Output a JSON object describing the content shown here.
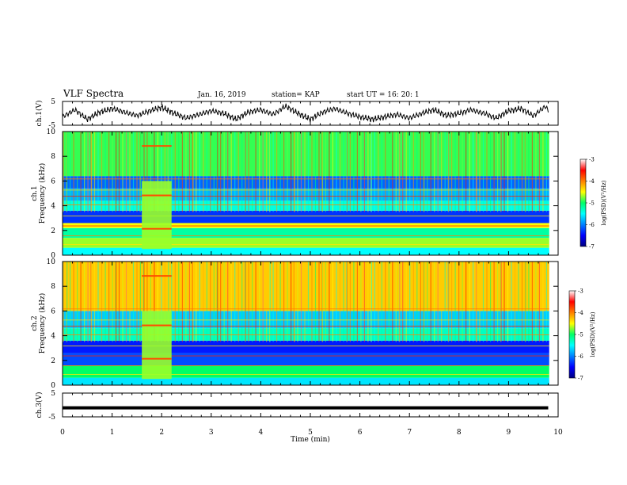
{
  "header": {
    "title": "VLF Spectra",
    "date": "Jan. 16, 2019",
    "station": "station= KAP",
    "start": "start  UT =   16: 20: 1"
  },
  "chart_data": [
    {
      "type": "line",
      "panel": "channel-1-waveform",
      "ylabel": "ch.1(V)",
      "ylim": [
        -5,
        5
      ],
      "yticks": [
        "5",
        "-5"
      ],
      "xlim": [
        0,
        10
      ],
      "series": [
        {
          "x": [
            0.0,
            0.25,
            0.5,
            0.75,
            1.0,
            1.25,
            1.5,
            1.75,
            2.0,
            2.25,
            2.5,
            2.75,
            3.0,
            3.25,
            3.5,
            3.75,
            4.0,
            4.25,
            4.5,
            4.75,
            5.0,
            5.25,
            5.5,
            5.75,
            6.0,
            6.25,
            6.5,
            6.75,
            7.0,
            7.25,
            7.5,
            7.75,
            8.0,
            8.25,
            8.5,
            8.75,
            9.0,
            9.25,
            9.5,
            9.75,
            9.8
          ],
          "values": [
            -1.5,
            1.5,
            -2.5,
            0.5,
            2.0,
            0.5,
            -1.0,
            1.0,
            2.5,
            0.0,
            -2.0,
            -0.5,
            1.0,
            0.0,
            -2.5,
            0.5,
            1.5,
            -0.5,
            3.0,
            0.0,
            -2.5,
            0.5,
            2.0,
            0.0,
            -1.5,
            -2.5,
            -1.5,
            -0.5,
            -2.0,
            0.0,
            1.5,
            -1.0,
            0.0,
            1.5,
            0.0,
            -2.0,
            1.0,
            2.0,
            -1.0,
            3.0,
            1.0
          ]
        }
      ]
    },
    {
      "type": "heatmap",
      "panel": "channel-1-spectrogram",
      "ylabel": "ch.1\nFrequency  (kHz)",
      "ylim": [
        0,
        10
      ],
      "yticks": [
        "0",
        "2",
        "4",
        "6",
        "8",
        "10"
      ],
      "xlim": [
        0,
        10
      ],
      "colorbar": {
        "label": "log(PSD)(V²/Hz)",
        "range": [
          -7,
          -3
        ],
        "ticks": [
          "-3",
          "-4",
          "-5",
          "-6",
          "-7"
        ]
      },
      "bands_khz": [
        {
          "from": 0,
          "to": 0.6,
          "level": -5.5
        },
        {
          "from": 0.6,
          "to": 1.4,
          "level": -4.7
        },
        {
          "from": 1.4,
          "to": 2.2,
          "level": -5.2
        },
        {
          "from": 2.2,
          "to": 2.6,
          "level": -4.5
        },
        {
          "from": 2.6,
          "to": 3.6,
          "level": -6.3
        },
        {
          "from": 3.6,
          "to": 4.4,
          "level": -5.4
        },
        {
          "from": 4.4,
          "to": 5.4,
          "level": -5.8
        },
        {
          "from": 5.4,
          "to": 6.4,
          "level": -6.1
        },
        {
          "from": 6.4,
          "to": 10,
          "level": -4.9
        }
      ],
      "burst_min": [
        1.6,
        2.2
      ]
    },
    {
      "type": "heatmap",
      "panel": "channel-2-spectrogram",
      "ylabel": "ch.2\nFrequency  (kHz)",
      "ylim": [
        0,
        10
      ],
      "yticks": [
        "0",
        "2",
        "4",
        "6",
        "8",
        "10"
      ],
      "xlim": [
        0,
        10
      ],
      "colorbar": {
        "label": "log(PSD)(V²/Hz)",
        "range": [
          -7,
          -3
        ],
        "ticks": [
          "-3",
          "-4",
          "-5",
          "-6",
          "-7"
        ]
      },
      "bands_khz": [
        {
          "from": 0,
          "to": 0.6,
          "level": -5.6
        },
        {
          "from": 0.6,
          "to": 1.6,
          "level": -5.0
        },
        {
          "from": 1.6,
          "to": 2.6,
          "level": -6.2
        },
        {
          "from": 2.6,
          "to": 3.6,
          "level": -6.4
        },
        {
          "from": 3.6,
          "to": 4.6,
          "level": -5.3
        },
        {
          "from": 4.6,
          "to": 6.0,
          "level": -5.7
        },
        {
          "from": 6.0,
          "to": 10,
          "level": -4.3
        }
      ],
      "burst_min": [
        1.6,
        2.2
      ]
    },
    {
      "type": "line",
      "panel": "channel-3-waveform",
      "ylabel": "ch.3(V)",
      "ylim": [
        -5,
        5
      ],
      "yticks": [
        "5",
        "-5"
      ],
      "xlim": [
        0,
        10
      ],
      "xlabel": "Time  (min)",
      "xticks": [
        "0",
        "1",
        "2",
        "3",
        "4",
        "5",
        "6",
        "7",
        "8",
        "9",
        "10"
      ],
      "series": [
        {
          "x": [
            0.0,
            9.8
          ],
          "values": [
            -1.2,
            -1.2
          ]
        }
      ]
    }
  ]
}
